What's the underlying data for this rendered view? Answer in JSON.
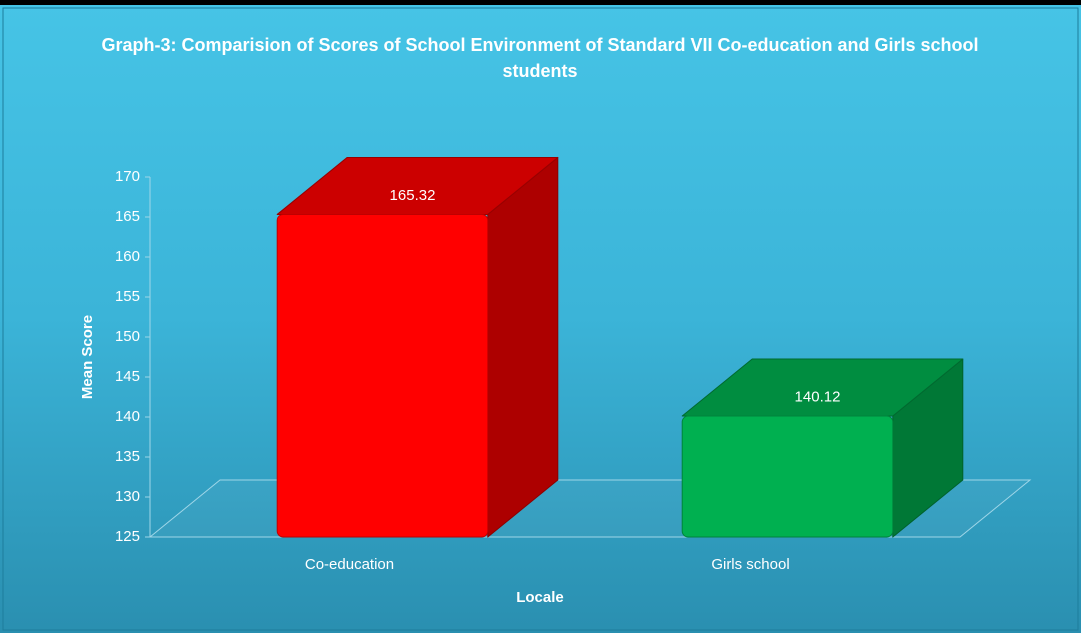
{
  "chart_data": {
    "type": "bar3d",
    "title": "Graph-3: Comparision of Scores of School Environment of Standard VII Co-education and Girls school students",
    "x_label": "Locale",
    "y_label": "Mean Score",
    "categories": [
      "Co-education",
      "Girls school"
    ],
    "values": [
      165.32,
      140.12
    ],
    "colors": [
      "#ff0000",
      "#00b050"
    ],
    "ylim": [
      125,
      170
    ],
    "yticks": [
      125,
      130,
      135,
      140,
      145,
      150,
      155,
      160,
      165,
      170
    ],
    "grid": false
  }
}
